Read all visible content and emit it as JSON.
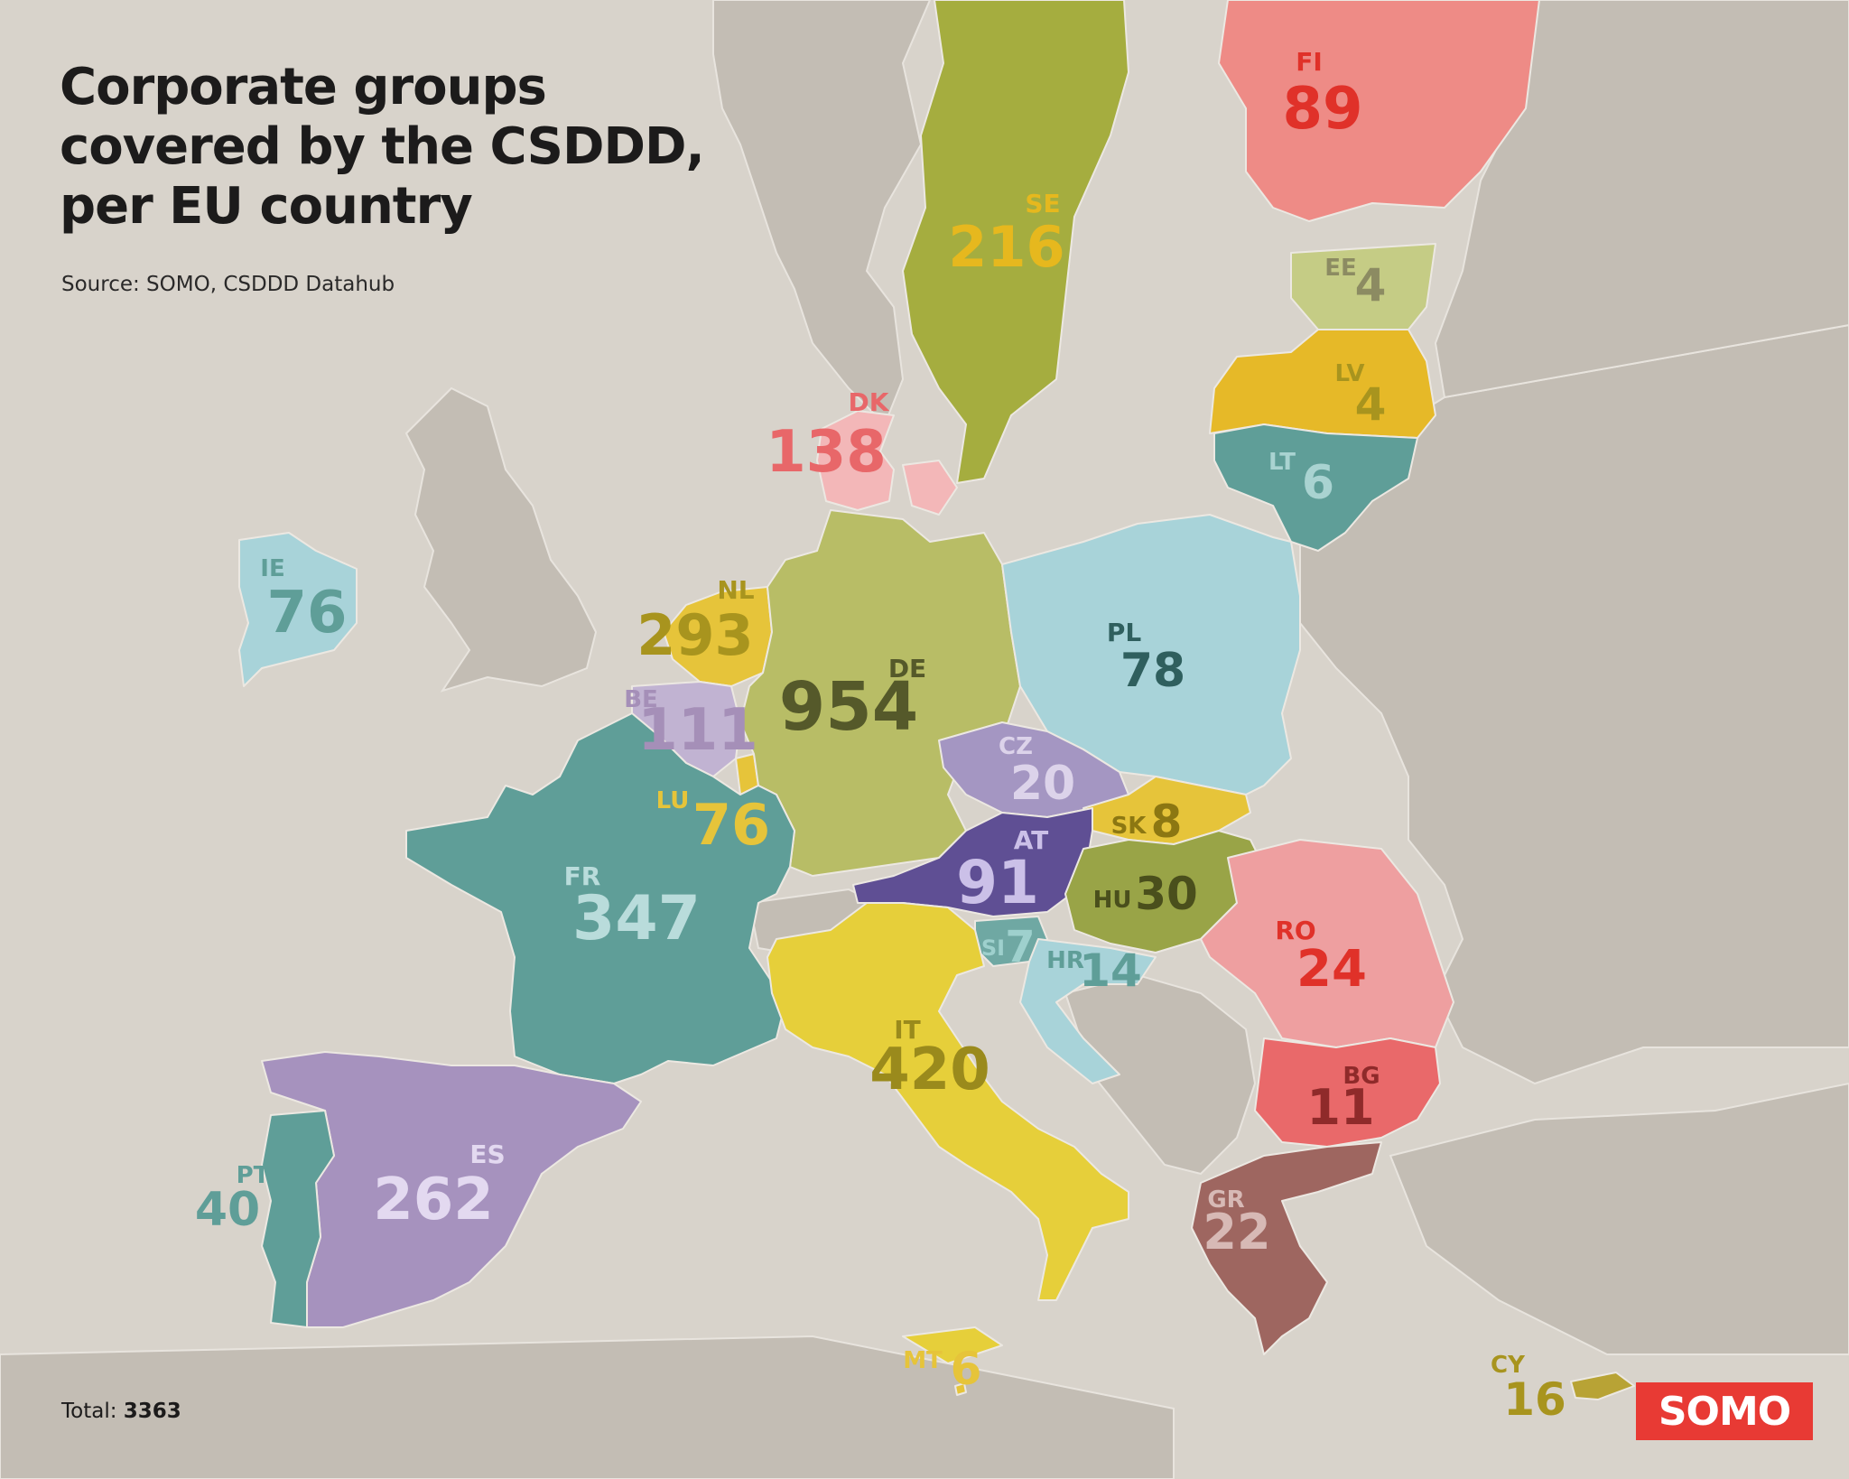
{
  "title": [
    "Corporate groups",
    "covered by the CSDDD,",
    "per EU country"
  ],
  "source": "Source: SOMO, CSDDD Datahub",
  "total": {
    "label": "Total:",
    "value": "3363"
  },
  "logo": "SOMO",
  "countries": {
    "FI": {
      "code": "FI",
      "value": "89",
      "fill": "#ee8b86",
      "text": "#e03129"
    },
    "SE": {
      "code": "SE",
      "value": "216",
      "fill": "#a5ad3f",
      "text": "#e6b81e"
    },
    "EE": {
      "code": "EE",
      "value": "4",
      "fill": "#c5cc85",
      "text": "#8c8b62"
    },
    "LV": {
      "code": "LV",
      "value": "4",
      "fill": "#e6b928",
      "text": "#a8941e"
    },
    "LT": {
      "code": "LT",
      "value": "6",
      "fill": "#5f9e98",
      "text": "#a9d3d1"
    },
    "DK": {
      "code": "DK",
      "value": "138",
      "fill": "#f3b7b8",
      "text": "#e86769"
    },
    "IE": {
      "code": "IE",
      "value": "76",
      "fill": "#a8d3d9",
      "text": "#5f9e98"
    },
    "NL": {
      "code": "NL",
      "value": "293",
      "fill": "#e6c43a",
      "text": "#a8941e"
    },
    "BE": {
      "code": "BE",
      "value": "111",
      "fill": "#c1b3d2",
      "text": "#a58fb8"
    },
    "LU": {
      "code": "LU",
      "value": "76",
      "fill": "#e6c43a",
      "text": "#e6c43a"
    },
    "DE": {
      "code": "DE",
      "value": "954",
      "fill": "#b8bd66",
      "text": "#55592a"
    },
    "PL": {
      "code": "PL",
      "value": "78",
      "fill": "#a8d3d9",
      "text": "#2f5f5e"
    },
    "CZ": {
      "code": "CZ",
      "value": "20",
      "fill": "#a496c2",
      "text": "#dcd3ea"
    },
    "SK": {
      "code": "SK",
      "value": "8",
      "fill": "#e6c43a",
      "text": "#8c7712"
    },
    "AT": {
      "code": "AT",
      "value": "91",
      "fill": "#5f4f94",
      "text": "#cbc0e8"
    },
    "HU": {
      "code": "HU",
      "value": "30",
      "fill": "#99a447",
      "text": "#4a4f1c"
    },
    "SI": {
      "code": "SI",
      "value": "7",
      "fill": "#6fa8a3",
      "text": "#9ed0cd"
    },
    "HR": {
      "code": "HR",
      "value": "14",
      "fill": "#a8d3d9",
      "text": "#5f9e98"
    },
    "RO": {
      "code": "RO",
      "value": "24",
      "fill": "#ee9fa0",
      "text": "#e03129"
    },
    "BG": {
      "code": "BG",
      "value": "11",
      "fill": "#e9696a",
      "text": "#8f2a2a"
    },
    "GR": {
      "code": "GR",
      "value": "22",
      "fill": "#9e6660",
      "text": "#d7b9b5"
    },
    "FR": {
      "code": "FR",
      "value": "347",
      "fill": "#5f9e98",
      "text": "#b9dcdb"
    },
    "IT": {
      "code": "IT",
      "value": "420",
      "fill": "#e6cf3a",
      "text": "#9a8a1c"
    },
    "ES": {
      "code": "ES",
      "value": "262",
      "fill": "#a692be",
      "text": "#e3d9f0"
    },
    "PT": {
      "code": "PT",
      "value": "40",
      "fill": "#5f9e98",
      "text": "#5f9e98"
    },
    "MT": {
      "code": "MT",
      "value": "6",
      "fill": "#e6c43a",
      "text": "#e6c43a"
    },
    "CY": {
      "code": "CY",
      "value": "16",
      "fill": "#b8a335",
      "text": "#a8941e"
    }
  }
}
